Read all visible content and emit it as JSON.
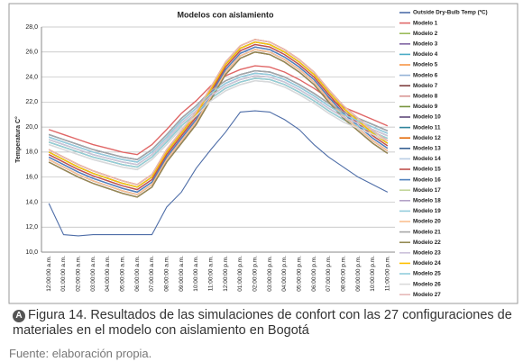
{
  "chart_data": {
    "type": "line",
    "title": "Modelos con aislamiento",
    "y_label": "Temperatura C°",
    "categories": [
      "12:00:00 a.m.",
      "01:00:00 a.m.",
      "02:00:00 a.m.",
      "03:00:00 a.m.",
      "04:00:00 a.m.",
      "05:00:00 a.m.",
      "06:00:00 a.m.",
      "07:00:00 a.m.",
      "08:00:00 a.m.",
      "09:00:00 a.m.",
      "10:00:00 a.m.",
      "11:00:00 a.m.",
      "12:00:00 p.m.",
      "01:00:00 p.m.",
      "02:00:00 p.m.",
      "03:00:00 p.m.",
      "04:00:00 p.m.",
      "05:00:00 p.m.",
      "06:00:00 p.m.",
      "07:00:00 p.m.",
      "08:00:00 p.m.",
      "09:00:00 p.m.",
      "10:00:00 p.m.",
      "11:00:00 p.m."
    ],
    "ylim": [
      10,
      28
    ],
    "yticks": [
      {
        "value": 10,
        "label": "10,0"
      },
      {
        "value": 12,
        "label": "12,0"
      },
      {
        "value": 14,
        "label": "14,0"
      },
      {
        "value": 16,
        "label": "16,0"
      },
      {
        "value": 18,
        "label": "18,0"
      },
      {
        "value": 20,
        "label": "20,0"
      },
      {
        "value": 22,
        "label": "22,0"
      },
      {
        "value": 24,
        "label": "24,0"
      },
      {
        "value": 26,
        "label": "26,0"
      },
      {
        "value": 28,
        "label": "28,0"
      }
    ],
    "grid": true,
    "series": [
      {
        "name": "Outside Dry-Bulb Temp (ºC)",
        "color": "#4f6ea8",
        "values": [
          13.9,
          11.4,
          11.3,
          11.4,
          11.4,
          11.4,
          11.4,
          11.4,
          13.6,
          14.8,
          16.7,
          18.2,
          19.6,
          21.2,
          21.3,
          21.2,
          20.6,
          19.8,
          18.6,
          17.6,
          16.8,
          16.0,
          15.4,
          14.8
        ]
      },
      {
        "name": "Modelo 1",
        "color": "#e06666",
        "values": [
          19.8,
          19.4,
          19.0,
          18.6,
          18.3,
          18.0,
          17.8,
          18.6,
          19.8,
          21.1,
          22.1,
          23.3,
          24.1,
          24.6,
          24.9,
          24.8,
          24.4,
          23.8,
          23.1,
          22.3,
          21.6,
          21.1,
          20.6,
          20.1
        ]
      },
      {
        "name": "Modelo 2",
        "color": "#9bbb59",
        "values": [
          18.0,
          17.4,
          16.8,
          16.3,
          15.9,
          15.5,
          15.2,
          16.0,
          18.0,
          19.5,
          21.0,
          23.0,
          25.0,
          26.3,
          26.8,
          26.6,
          26.0,
          25.2,
          24.2,
          22.8,
          21.5,
          20.5,
          19.5,
          18.7
        ]
      },
      {
        "name": "Modelo 3",
        "color": "#8064a2",
        "values": [
          17.6,
          17.0,
          16.4,
          15.9,
          15.5,
          15.1,
          14.8,
          15.6,
          17.6,
          19.1,
          20.6,
          22.6,
          24.6,
          25.9,
          26.4,
          26.2,
          25.6,
          24.8,
          23.8,
          22.4,
          21.1,
          20.1,
          19.1,
          18.3
        ]
      },
      {
        "name": "Modelo 4",
        "color": "#4bacc6",
        "values": [
          19.0,
          18.6,
          18.2,
          17.8,
          17.5,
          17.2,
          17.0,
          17.8,
          19.0,
          20.3,
          21.3,
          22.5,
          23.3,
          23.8,
          24.1,
          24.0,
          23.6,
          23.0,
          22.3,
          21.5,
          20.8,
          20.3,
          19.8,
          19.3
        ]
      },
      {
        "name": "Modelo 5",
        "color": "#f79646",
        "values": [
          18.2,
          17.6,
          17.0,
          16.5,
          16.1,
          15.7,
          15.4,
          16.2,
          18.2,
          19.7,
          21.2,
          23.2,
          25.2,
          26.5,
          27.0,
          26.8,
          26.2,
          25.4,
          24.4,
          23.0,
          21.7,
          20.7,
          19.7,
          18.9
        ]
      },
      {
        "name": "Modelo 6",
        "color": "#95b3d7",
        "values": [
          19.2,
          18.8,
          18.4,
          18.0,
          17.7,
          17.4,
          17.2,
          18.0,
          19.2,
          20.5,
          21.5,
          22.7,
          23.5,
          24.0,
          24.3,
          24.2,
          23.8,
          23.2,
          22.5,
          21.7,
          21.0,
          20.5,
          20.0,
          19.5
        ]
      },
      {
        "name": "Modelo 7",
        "color": "#7f3f3f",
        "values": [
          17.2,
          16.6,
          16.0,
          15.5,
          15.1,
          14.7,
          14.4,
          15.2,
          17.2,
          18.7,
          20.2,
          22.2,
          24.2,
          25.5,
          26.0,
          25.8,
          25.2,
          24.4,
          23.4,
          22.0,
          20.7,
          19.7,
          18.7,
          17.9
        ]
      },
      {
        "name": "Modelo 8",
        "color": "#d99694",
        "values": [
          17.8,
          17.2,
          16.6,
          16.1,
          15.7,
          15.3,
          15.0,
          15.8,
          17.8,
          19.3,
          20.8,
          22.8,
          24.8,
          26.1,
          26.6,
          26.4,
          25.8,
          25.0,
          24.0,
          22.6,
          21.3,
          20.3,
          19.3,
          18.5
        ]
      },
      {
        "name": "Modelo 9",
        "color": "#77933c",
        "values": [
          18.8,
          18.4,
          18.0,
          17.6,
          17.3,
          17.0,
          16.8,
          17.6,
          18.8,
          20.1,
          21.1,
          22.3,
          23.1,
          23.6,
          23.9,
          23.8,
          23.4,
          22.8,
          22.1,
          21.3,
          20.6,
          20.1,
          19.6,
          19.1
        ]
      },
      {
        "name": "Modelo 10",
        "color": "#604a7b",
        "values": [
          17.4,
          16.8,
          16.2,
          15.7,
          15.3,
          14.9,
          14.6,
          15.4,
          17.4,
          18.9,
          20.4,
          22.4,
          24.4,
          25.7,
          26.2,
          26.0,
          25.4,
          24.6,
          23.6,
          22.2,
          20.9,
          19.9,
          18.9,
          18.1
        ]
      },
      {
        "name": "Modelo 11",
        "color": "#31859c",
        "values": [
          18.0,
          17.4,
          16.8,
          16.3,
          15.9,
          15.5,
          15.2,
          16.0,
          18.0,
          19.5,
          21.0,
          23.0,
          25.0,
          26.3,
          26.8,
          26.6,
          26.0,
          25.2,
          24.2,
          22.8,
          21.5,
          20.5,
          19.5,
          18.7
        ]
      },
      {
        "name": "Modelo 12",
        "color": "#e46c0a",
        "values": [
          18.2,
          17.6,
          17.0,
          16.5,
          16.1,
          15.7,
          15.4,
          16.2,
          18.2,
          19.7,
          21.2,
          23.2,
          25.2,
          26.5,
          27.0,
          26.8,
          26.2,
          25.4,
          24.4,
          23.0,
          21.7,
          20.7,
          19.7,
          18.9
        ]
      },
      {
        "name": "Modelo 13",
        "color": "#376092",
        "values": [
          19.4,
          19.0,
          18.6,
          18.2,
          17.9,
          17.6,
          17.4,
          18.2,
          19.4,
          20.7,
          21.7,
          22.9,
          23.7,
          24.2,
          24.5,
          24.4,
          24.0,
          23.4,
          22.7,
          21.9,
          21.2,
          20.7,
          20.2,
          19.7
        ]
      },
      {
        "name": "Modelo 14",
        "color": "#b9cde5",
        "values": [
          18.6,
          18.2,
          17.8,
          17.4,
          17.1,
          16.8,
          16.6,
          17.4,
          18.6,
          19.9,
          20.9,
          22.1,
          22.9,
          23.4,
          23.7,
          23.6,
          23.2,
          22.6,
          21.9,
          21.1,
          20.4,
          19.9,
          19.4,
          18.9
        ]
      },
      {
        "name": "Modelo 15",
        "color": "#c0504d",
        "values": [
          17.8,
          17.2,
          16.6,
          16.1,
          15.7,
          15.3,
          15.0,
          15.8,
          17.8,
          19.3,
          20.8,
          22.8,
          24.8,
          26.1,
          26.6,
          26.4,
          25.8,
          25.0,
          24.0,
          22.6,
          21.3,
          20.3,
          19.3,
          18.5
        ]
      },
      {
        "name": "Modelo 16",
        "color": "#4f81bd",
        "values": [
          17.6,
          17.0,
          16.4,
          15.9,
          15.5,
          15.1,
          14.8,
          15.6,
          17.6,
          19.1,
          20.6,
          22.6,
          24.6,
          25.9,
          26.4,
          26.2,
          25.6,
          24.8,
          23.8,
          22.4,
          21.1,
          20.1,
          19.1,
          18.3
        ]
      },
      {
        "name": "Modelo 17",
        "color": "#c3d69b",
        "values": [
          19.0,
          18.6,
          18.2,
          17.8,
          17.5,
          17.2,
          17.0,
          17.8,
          19.0,
          20.3,
          21.3,
          22.5,
          23.3,
          23.8,
          24.1,
          24.0,
          23.6,
          23.0,
          22.3,
          21.5,
          20.8,
          20.3,
          19.8,
          19.3
        ]
      },
      {
        "name": "Modelo 18",
        "color": "#b3a2c7",
        "values": [
          19.2,
          18.8,
          18.4,
          18.0,
          17.7,
          17.4,
          17.2,
          18.0,
          19.2,
          20.5,
          21.5,
          22.7,
          23.5,
          24.0,
          24.3,
          24.2,
          23.8,
          23.2,
          22.5,
          21.7,
          21.0,
          20.5,
          20.0,
          19.5
        ]
      },
      {
        "name": "Modelo 19",
        "color": "#93cddd",
        "values": [
          18.8,
          18.4,
          18.0,
          17.6,
          17.3,
          17.0,
          16.8,
          17.6,
          18.8,
          20.1,
          21.1,
          22.3,
          23.1,
          23.6,
          23.9,
          23.8,
          23.4,
          22.8,
          22.1,
          21.3,
          20.6,
          20.1,
          19.6,
          19.1
        ]
      },
      {
        "name": "Modelo 20",
        "color": "#fac090",
        "values": [
          17.4,
          16.8,
          16.2,
          15.7,
          15.3,
          14.9,
          14.6,
          15.4,
          17.4,
          18.9,
          20.4,
          22.4,
          24.4,
          25.7,
          26.2,
          26.0,
          25.4,
          24.6,
          23.6,
          22.2,
          20.9,
          19.9,
          18.9,
          18.1
        ]
      },
      {
        "name": "Modelo 21",
        "color": "#a6a6a6",
        "values": [
          19.4,
          19.0,
          18.6,
          18.2,
          17.9,
          17.6,
          17.4,
          18.2,
          19.4,
          20.7,
          21.7,
          22.9,
          23.7,
          24.2,
          24.5,
          24.4,
          24.0,
          23.4,
          22.7,
          21.9,
          21.2,
          20.7,
          20.2,
          19.7
        ]
      },
      {
        "name": "Modelo 22",
        "color": "#948a54",
        "values": [
          17.2,
          16.6,
          16.0,
          15.5,
          15.1,
          14.7,
          14.4,
          15.2,
          17.2,
          18.7,
          20.2,
          22.2,
          24.2,
          25.5,
          26.0,
          25.8,
          25.2,
          24.4,
          23.4,
          22.0,
          20.7,
          19.7,
          18.7,
          17.9
        ]
      },
      {
        "name": "Modelo 23",
        "color": "#ccc1da",
        "values": [
          19.0,
          18.6,
          18.2,
          17.8,
          17.5,
          17.2,
          17.0,
          17.8,
          19.0,
          20.3,
          21.3,
          22.5,
          23.3,
          23.8,
          24.1,
          24.0,
          23.6,
          23.0,
          22.3,
          21.5,
          20.8,
          20.3,
          19.8,
          19.3
        ]
      },
      {
        "name": "Modelo 24",
        "color": "#ffc000",
        "values": [
          18.0,
          17.4,
          16.8,
          16.3,
          15.9,
          15.5,
          15.2,
          16.0,
          18.0,
          19.5,
          21.0,
          23.0,
          25.0,
          26.3,
          26.8,
          26.6,
          26.0,
          25.2,
          24.2,
          22.8,
          21.5,
          20.5,
          19.5,
          18.7
        ]
      },
      {
        "name": "Modelo 25",
        "color": "#92cddc",
        "values": [
          19.2,
          18.8,
          18.4,
          18.0,
          17.7,
          17.4,
          17.2,
          18.0,
          19.2,
          20.5,
          21.5,
          22.7,
          23.5,
          24.0,
          24.3,
          24.2,
          23.8,
          23.2,
          22.5,
          21.7,
          21.0,
          20.5,
          20.0,
          19.5
        ]
      },
      {
        "name": "Modelo 26",
        "color": "#d9d9d9",
        "values": [
          18.6,
          18.2,
          17.8,
          17.4,
          17.1,
          16.8,
          16.6,
          17.4,
          18.6,
          19.9,
          20.9,
          22.1,
          22.9,
          23.4,
          23.7,
          23.6,
          23.2,
          22.6,
          21.9,
          21.1,
          20.4,
          19.9,
          19.4,
          18.9
        ]
      },
      {
        "name": "Modelo 27",
        "color": "#e6b9b8",
        "values": [
          18.2,
          17.6,
          17.0,
          16.5,
          16.1,
          15.7,
          15.4,
          16.2,
          18.2,
          19.7,
          21.2,
          23.2,
          25.2,
          26.5,
          27.0,
          26.8,
          26.2,
          25.4,
          24.4,
          23.0,
          21.7,
          20.7,
          19.7,
          18.9
        ]
      }
    ]
  },
  "caption": {
    "badge": "A",
    "text": "Figura 14. Resultados de las simulaciones de confort con las 27 configuraciones de materiales en el modelo con aislamiento en Bogotá",
    "source": "Fuente: elaboración propia."
  }
}
